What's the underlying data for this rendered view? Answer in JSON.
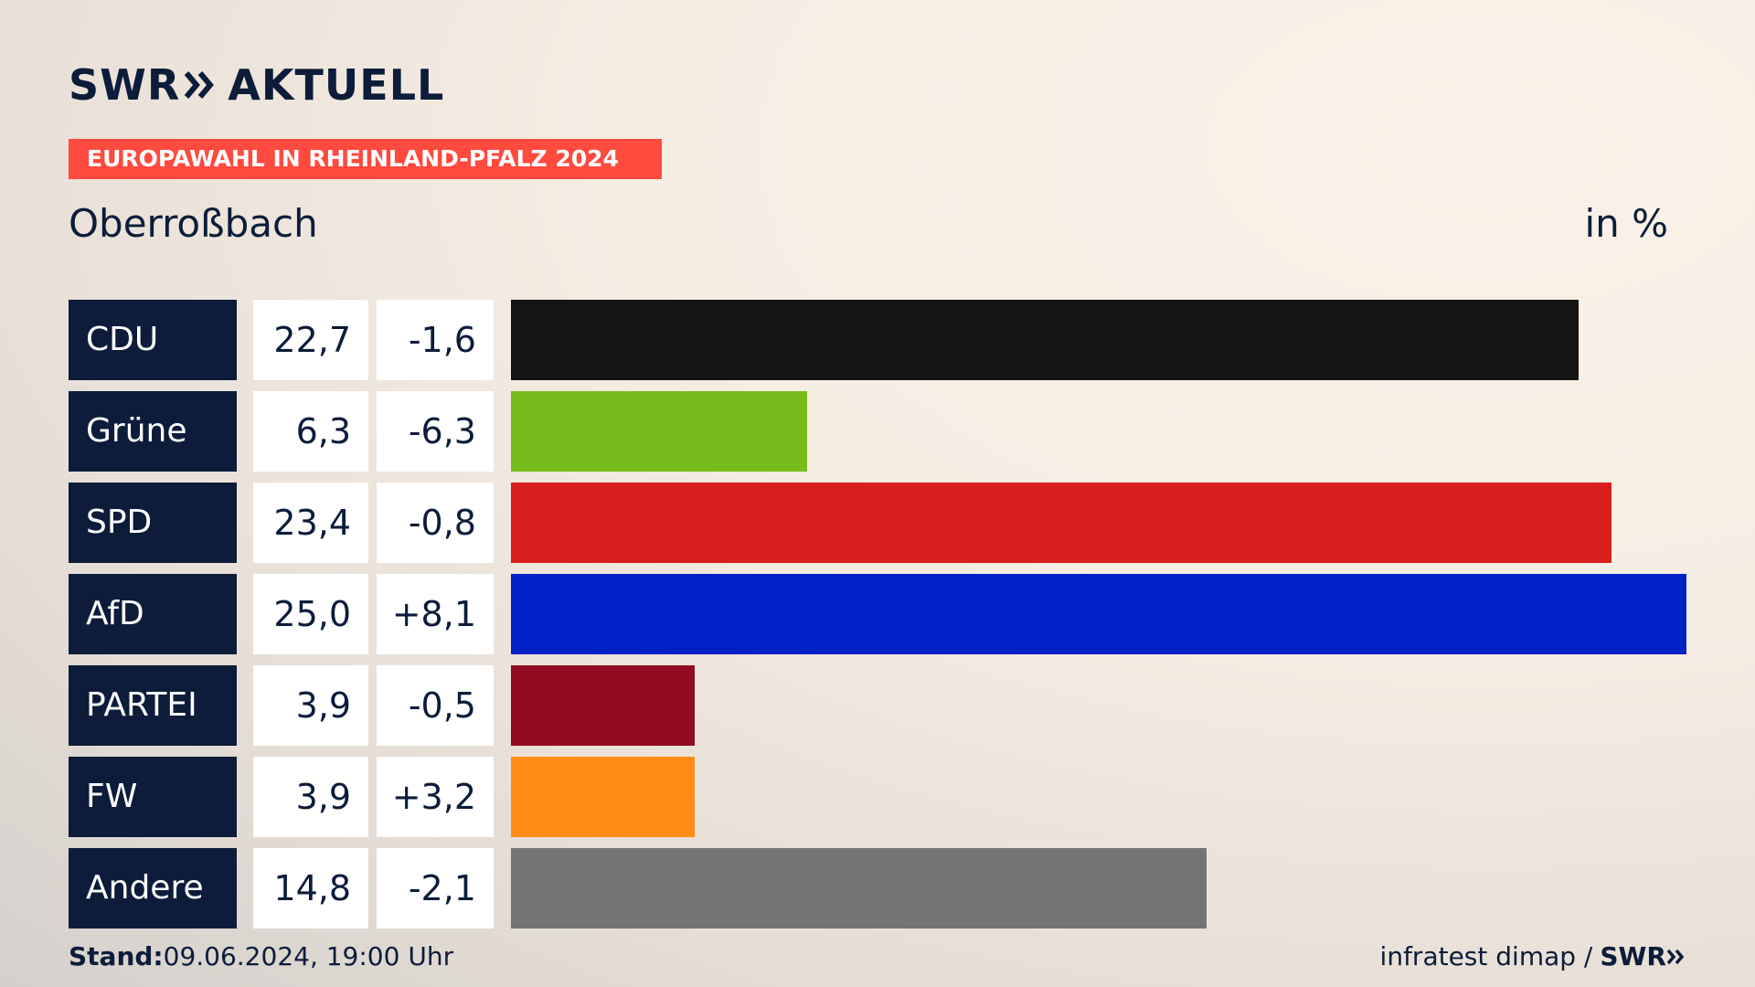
{
  "header": {
    "logo_left": "SWR",
    "logo_right": "AKTUELL",
    "kicker": "EUROPAWAHL IN RHEINLAND-PFALZ 2024",
    "subtitle": "Oberroßbach",
    "unit": "in %"
  },
  "chart_data": {
    "type": "bar",
    "orientation": "horizontal",
    "title": "EUROPAWAHL IN RHEINLAND-PFALZ 2024",
    "subtitle": "Oberroßbach",
    "unit": "in %",
    "categories": [
      "CDU",
      "Grüne",
      "SPD",
      "AfD",
      "PARTEI",
      "FW",
      "Andere"
    ],
    "values": [
      22.7,
      6.3,
      23.4,
      25.0,
      3.9,
      3.9,
      14.8
    ],
    "value_labels": [
      "22,7",
      "6,3",
      "23,4",
      "25,0",
      "3,9",
      "3,9",
      "14,8"
    ],
    "diff_labels": [
      "-1,6",
      "-6,3",
      "-0,8",
      "+8,1",
      "-0,5",
      "+3,2",
      "-2,1"
    ],
    "diffs": [
      -1.6,
      -6.3,
      -0.8,
      8.1,
      -0.5,
      3.2,
      -2.1
    ],
    "colors": [
      "#141414",
      "#78bc1b",
      "#d71f1d",
      "#0021c8",
      "#920b20",
      "#ff8d14",
      "#737476"
    ],
    "xlim": [
      0,
      25.0
    ]
  },
  "footer": {
    "stand_label": "Stand:",
    "stand_value": "09.06.2024, 19:00 Uhr",
    "source": "infratest dimap /",
    "source_logo": "SWR"
  }
}
